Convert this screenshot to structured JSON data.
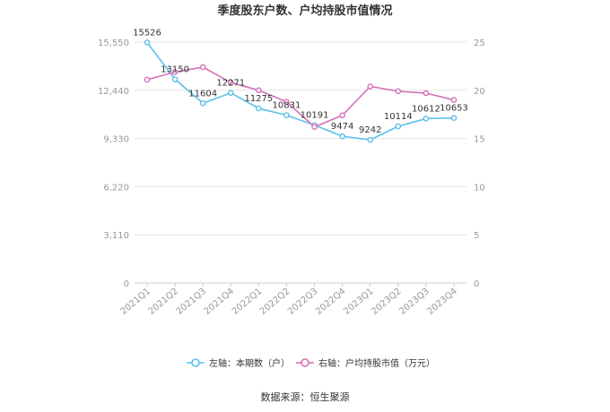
{
  "chart_data": {
    "type": "line",
    "title": "季度股东户数、户均持股市值情况",
    "categories": [
      "2021Q1",
      "2021Q2",
      "2021Q3",
      "2021Q4",
      "2022Q1",
      "2022Q2",
      "2022Q3",
      "2022Q4",
      "2023Q1",
      "2023Q2",
      "2023Q3",
      "2023Q4"
    ],
    "left_axis": {
      "ticks": [
        "0",
        "3,110",
        "6,220",
        "9,330",
        "12,440",
        "15,550"
      ],
      "max": 15550
    },
    "right_axis": {
      "ticks": [
        "0",
        "5",
        "10",
        "15",
        "20",
        "25"
      ],
      "max": 25
    },
    "series": [
      {
        "name": "左轴：本期数（户）",
        "axis": "left",
        "color": "#5bc0eb",
        "values": [
          15526,
          13150,
          11604,
          12271,
          11275,
          10831,
          10191,
          9474,
          9242,
          10114,
          10612,
          10653
        ],
        "labels": [
          "15526",
          "13150",
          "11604",
          "12271",
          "11275",
          "10831",
          "10191",
          "9474",
          "9242",
          "10114",
          "10612",
          "10653"
        ]
      },
      {
        "name": "右轴：户均持股市值（万元）",
        "axis": "right",
        "color": "#d56fb8",
        "values": [
          21.1,
          21.9,
          22.4,
          20.8,
          20.0,
          18.8,
          16.2,
          17.4,
          20.4,
          19.9,
          19.7,
          19.0
        ]
      }
    ],
    "legend_position": "bottom",
    "grid": true
  },
  "source": "数据来源：恒生聚源"
}
